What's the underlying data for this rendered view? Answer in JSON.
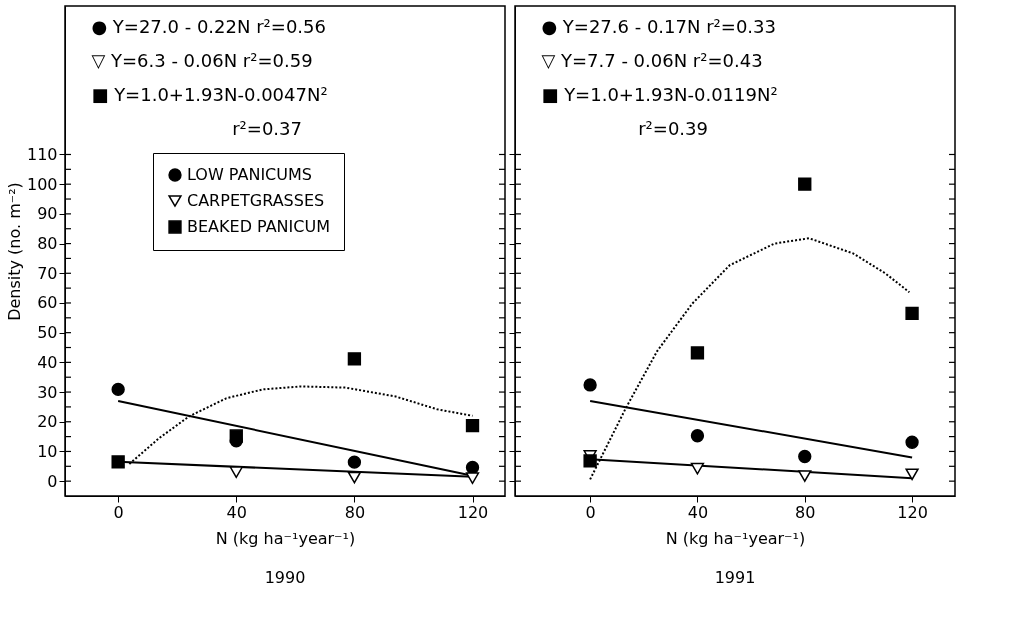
{
  "chart_data": [
    {
      "type": "scatter",
      "title": "1990",
      "xlabel": "N (kg ha⁻¹year⁻¹)",
      "ylabel": "Density (no. m⁻²)",
      "x": [
        0,
        40,
        80,
        120
      ],
      "xlim": [
        -18,
        131
      ],
      "xticks": [
        0,
        40,
        80,
        120
      ],
      "ylim": [
        -5,
        160
      ],
      "yticks": [
        0,
        {
          "value": 5,
          "label": null
        },
        10,
        {
          "value": 15,
          "label": null
        },
        20,
        {
          "value": 25,
          "label": null
        },
        30,
        {
          "value": 35,
          "label": null
        },
        40,
        {
          "value": 45,
          "label": null
        },
        50,
        {
          "value": 55,
          "label": null
        },
        60,
        {
          "value": 65,
          "label": null
        },
        70,
        {
          "value": 75,
          "label": null
        },
        80,
        {
          "value": 85,
          "label": null
        },
        90,
        {
          "value": 95,
          "label": null
        },
        100,
        {
          "value": 105,
          "label": null
        },
        110
      ],
      "legend": "top left",
      "grid": false,
      "series": [
        {
          "name": "LOW PANICUMS",
          "color": "#000000",
          "marker": "circle",
          "values": [
            30.9,
            13.6,
            6.4,
            4.6
          ]
        },
        {
          "name": "CARPETGRASSES",
          "color": "#000000",
          "marker": "triangle",
          "values": [
            null,
            3.0,
            1.2,
            1.0
          ]
        },
        {
          "name": "BEAKED PANICUM",
          "color": "#000000",
          "marker": "square",
          "values": [
            6.5,
            15.2,
            41.2,
            18.7
          ]
        },
        {
          "type": "line",
          "color": "#000000",
          "line_style": "solid",
          "x": [
            0,
            120
          ],
          "values": [
            27.0,
            1.8
          ]
        },
        {
          "type": "line",
          "color": "#000000",
          "line_style": "solid",
          "x": [
            0,
            120
          ],
          "values": [
            6.5,
            1.5
          ]
        },
        {
          "type": "line",
          "color": "#000000",
          "line_style": "dotted",
          "x": [
            3.8,
            13.9,
            24,
            36.6,
            49,
            62,
            77,
            94,
            108,
            120
          ],
          "values": [
            5.8,
            14.5,
            21.8,
            27.9,
            30.9,
            31.9,
            31.5,
            28.5,
            24.2,
            22
          ]
        }
      ],
      "annotations": [
        "● Y=27.0 - 0.22N r²=0.56",
        "▽ Y=6.3 - 0.06N r²=0.59",
        "■ Y=1.0+1.93N-0.0047N²",
        "r²=0.37"
      ]
    },
    {
      "type": "scatter",
      "title": "1991",
      "xlabel": "N (kg ha⁻¹year⁻¹)",
      "x": [
        0,
        40,
        80,
        120
      ],
      "xlim": [
        -28,
        136
      ],
      "xticks": [
        0,
        40,
        80,
        120
      ],
      "ylim": [
        -5,
        160
      ],
      "yticks": [
        0,
        {
          "value": 5,
          "label": null
        },
        10,
        {
          "value": 15,
          "label": null
        },
        20,
        {
          "value": 25,
          "label": null
        },
        30,
        {
          "value": 35,
          "label": null
        },
        40,
        {
          "value": 45,
          "label": null
        },
        50,
        {
          "value": 55,
          "label": null
        },
        60,
        {
          "value": 65,
          "label": null
        },
        70,
        {
          "value": 75,
          "label": null
        },
        80,
        {
          "value": 85,
          "label": null
        },
        90,
        {
          "value": 95,
          "label": null
        },
        100,
        {
          "value": 105,
          "label": null
        },
        110
      ],
      "tick_labels": "x",
      "grid": false,
      "series": [
        {
          "color": "#000000",
          "marker": "circle",
          "values": [
            32.4,
            15.3,
            8.3,
            13.1
          ]
        },
        {
          "color": "#000000",
          "marker": "triangle",
          "values": [
            8.5,
            4.2,
            1.7,
            2.3
          ]
        },
        {
          "color": "#000000",
          "marker": "square",
          "values": [
            6.8,
            43.2,
            100,
            56.5
          ]
        },
        {
          "type": "line",
          "color": "#000000",
          "line_style": "solid",
          "x": [
            0,
            120
          ],
          "values": [
            27,
            8
          ]
        },
        {
          "type": "line",
          "color": "#000000",
          "line_style": "solid",
          "x": [
            0,
            120
          ],
          "values": [
            7.4,
            1
          ]
        },
        {
          "type": "line",
          "color": "#000000",
          "line_style": "dotted",
          "x": [
            0,
            13.2,
            25,
            38,
            52,
            68.7,
            81.6,
            98,
            110,
            119
          ],
          "values": [
            0.6,
            24.4,
            43.8,
            59.7,
            72.7,
            80,
            81.8,
            76.7,
            70,
            63.6
          ]
        }
      ],
      "annotations": [
        "● Y=27.6 - 0.17N r²=0.33",
        "▽ Y=7.7 - 0.06N r²=0.43",
        "■ Y=1.0+1.93N-0.0119N²",
        "r²=0.39"
      ]
    }
  ]
}
